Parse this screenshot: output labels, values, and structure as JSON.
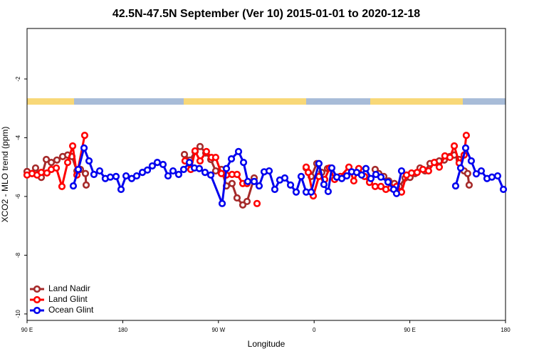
{
  "chart_data": {
    "type": "line",
    "title": "42.5N-47.5N September (Ver 10)   2015-01-01 to 2020-12-18",
    "x_label": "Longitude",
    "y_label": "XCO2 - MLO trend (ppm)",
    "xlim": [
      90,
      540
    ],
    "ylim": [
      -10.22,
      -0.28
    ],
    "xticks": [
      {
        "value": 90,
        "label": "90 E"
      },
      {
        "value": 180,
        "label": "180"
      },
      {
        "value": 270,
        "label": "90 W"
      },
      {
        "value": 360,
        "label": "0"
      },
      {
        "value": 450,
        "label": "90 E"
      },
      {
        "value": 540,
        "label": "180"
      }
    ],
    "yticks": [
      -2,
      -4,
      -6,
      -8,
      -10
    ],
    "legend": "bottom-left",
    "series": [
      {
        "name": "Land Nadir",
        "color": "#a52a2a",
        "x": [
          90,
          94.7,
          98,
          103.4,
          108.1,
          112.8,
          118.1,
          123.5,
          128.2,
          132.2,
          136.9,
          140.2,
          144.9,
          145.6,
          null,
          238,
          243.3,
          248,
          252.7,
          258.1,
          262.8,
          267.4,
          272.8,
          277.5,
          282.8,
          287.5,
          292.9,
          296.9,
          303.6,
          null,
          352.5,
          357.2,
          362.5,
          367.2,
          372.6,
          null,
          417.4,
          420.8,
          425.5,
          430.2,
          435.5,
          440.2,
          445.6,
          450.2,
          454.9,
          459.6,
          464.3,
          469,
          473.7,
          477.7,
          482.4,
          487.7,
          491.8,
          496.4,
          501.1,
          504.4,
          505.8
        ],
        "values": [
          -5.15,
          -5.22,
          -5.03,
          -5.35,
          -4.74,
          -4.84,
          -4.76,
          -4.64,
          -4.59,
          -4.64,
          -5.13,
          -5.08,
          -5.22,
          -5.61,
          null,
          -4.57,
          -4.76,
          -4.47,
          -4.3,
          -4.52,
          -4.74,
          -5.13,
          -5.08,
          -5.64,
          -5.56,
          -6.05,
          -6.29,
          -6.17,
          -5.37,
          null,
          -5.03,
          -5.32,
          -4.88,
          -5.18,
          -5.05,
          null,
          -5.08,
          -5.22,
          -5.32,
          -5.47,
          -5.56,
          -5.66,
          -5.37,
          -5.35,
          -5.22,
          -5.03,
          -5.13,
          -4.88,
          -4.84,
          -4.79,
          -4.76,
          -4.64,
          -4.59,
          -4.74,
          -5.13,
          -5.22,
          -5.61
        ]
      },
      {
        "name": "Land Glint",
        "color": "#ff0000",
        "x": [
          90,
          94.7,
          99.4,
          103.4,
          108.7,
          112.8,
          117.5,
          122.8,
          128.2,
          132.9,
          136.9,
          144.2,
          null,
          238.6,
          244,
          248,
          252.7,
          258.7,
          263.4,
          267.4,
          272.8,
          277.5,
          282.8,
          287.5,
          292.9,
          296.9,
          null,
          306.3,
          null,
          352.5,
          354.5,
          359.2,
          364.5,
          369.9,
          374.6,
          379.3,
          384.6,
          392.7,
          397.3,
          402,
          407.4,
          412.1,
          417.4,
          422.8,
          427.5,
          432.2,
          437.5,
          442.2,
          446.9,
          451.6,
          456.9,
          462.3,
          467.6,
          473,
          477.7,
          483,
          487.7,
          491.8,
          496.4,
          501.1,
          503.1
        ],
        "values": [
          -5.27,
          -5.22,
          -5.27,
          -5.18,
          -5.2,
          -5.08,
          -5.03,
          -5.66,
          -4.84,
          -4.28,
          -5.27,
          -3.92,
          null,
          -4.79,
          -5.08,
          -4.45,
          -4.79,
          -4.47,
          -4.67,
          -4.67,
          -5.22,
          -5.27,
          -5.25,
          -5.25,
          -5.56,
          -5.56,
          null,
          -6.24,
          null,
          -5.0,
          -5.18,
          -5.98,
          -5.32,
          -5.42,
          -5.03,
          -5.42,
          -5.32,
          -5.0,
          -5.47,
          -5.05,
          -5.32,
          -5.52,
          -5.66,
          -5.66,
          -5.76,
          -5.71,
          -5.66,
          -5.85,
          -5.27,
          -5.2,
          -5.18,
          -5.08,
          -5.13,
          -4.84,
          -5.0,
          -4.62,
          -4.67,
          -4.28,
          -4.86,
          -4.59,
          -3.92
        ]
      },
      {
        "name": "Ocean Glint",
        "color": "#0000ee",
        "x": [
          133.5,
          138.2,
          143.6,
          148.3,
          152.9,
          158.3,
          163.6,
          168.3,
          173.7,
          178.4,
          183.1,
          188.4,
          193.1,
          198.5,
          203.2,
          207.8,
          212.5,
          217.9,
          222.6,
          227.3,
          232.6,
          237.3,
          242.7,
          247.4,
          252,
          257.4,
          262.8,
          273.5,
          277.5,
          282.2,
          288.9,
          293.6,
          297.6,
          303.6,
          308.3,
          313,
          317.7,
          323,
          327.7,
          332.4,
          337.8,
          343.1,
          347.8,
          352.5,
          357.2,
          364.5,
          369.2,
          373.2,
          376.6,
          381.3,
          386,
          390.7,
          395.3,
          400,
          404.7,
          408.7,
          413.4,
          418.1,
          422.8,
          429.5,
          434.8,
          437.5,
          442.2,
          null,
          493.1,
          497.8,
          502.5,
          507.8,
          512.5,
          517.2,
          522.6,
          527.2,
          532.6,
          538
        ],
        "values": [
          -5.64,
          -5.08,
          -4.35,
          -4.79,
          -5.25,
          -5.13,
          -5.39,
          -5.34,
          -5.32,
          -5.76,
          -5.3,
          -5.39,
          -5.3,
          -5.18,
          -5.1,
          -4.96,
          -4.84,
          -4.91,
          -5.3,
          -5.13,
          -5.25,
          -5.08,
          -4.84,
          -5.03,
          -5.05,
          -5.18,
          -5.27,
          -6.24,
          -5.05,
          -4.72,
          -4.47,
          -4.84,
          -5.49,
          -5.49,
          -5.64,
          -5.16,
          -5.13,
          -5.76,
          -5.44,
          -5.37,
          -5.61,
          -5.85,
          -5.32,
          -5.85,
          -5.85,
          -4.88,
          -5.59,
          -5.83,
          -5.03,
          -5.34,
          -5.39,
          -5.3,
          -5.16,
          -5.18,
          -5.27,
          -5.05,
          -5.39,
          -5.25,
          -5.34,
          -5.51,
          -5.76,
          -5.9,
          -5.13,
          null,
          -5.64,
          -5.03,
          -4.35,
          -4.79,
          -5.23,
          -5.13,
          -5.39,
          -5.34,
          -5.3,
          -5.76
        ]
      }
    ]
  }
}
